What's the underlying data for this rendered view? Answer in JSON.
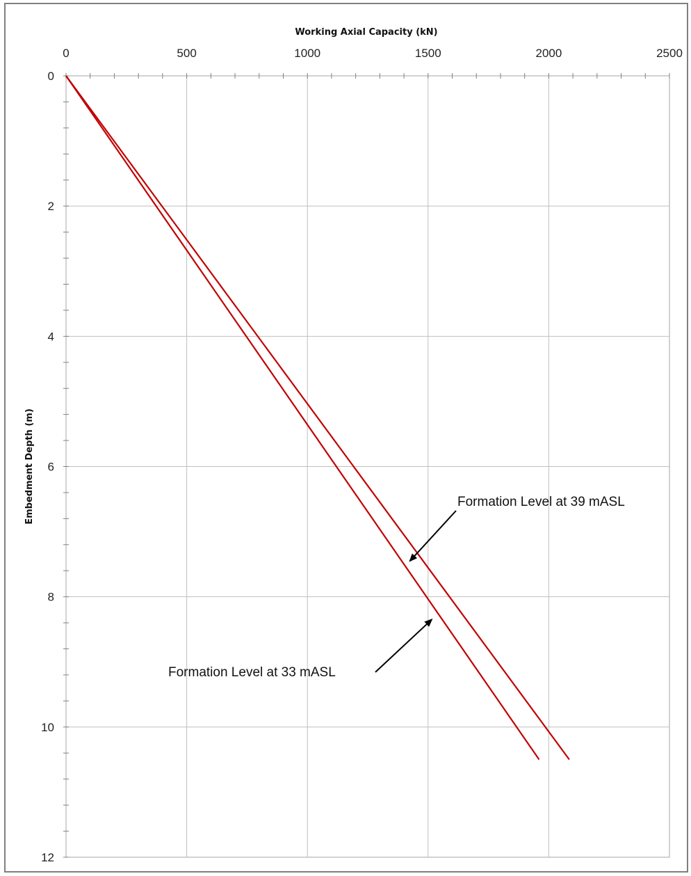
{
  "chart_data": {
    "type": "line",
    "title": "",
    "xlabel": "Working Axial Capacity (kN)",
    "ylabel": "Embedment Depth  (m)",
    "xlim": [
      0,
      2500
    ],
    "ylim": [
      0,
      12
    ],
    "y_inverted": true,
    "x_axis_position": "top",
    "x_ticks": [
      0,
      500,
      1000,
      1500,
      2000,
      2500
    ],
    "y_ticks": [
      0,
      2,
      4,
      6,
      8,
      10,
      12
    ],
    "grid": true,
    "line_color": "#c00000",
    "series": [
      {
        "name": "Formation Level at 39 mASL",
        "x": [
          0,
          2085
        ],
        "y": [
          0,
          10.5
        ]
      },
      {
        "name": "Formation Level at 33 mASL",
        "x": [
          0,
          1960
        ],
        "y": [
          0,
          10.5
        ]
      }
    ],
    "annotations": [
      {
        "text": "Formation Level at 39 mASL",
        "series": 0,
        "point": [
          1425,
          7.45
        ]
      },
      {
        "text": "Formation Level at 33 mASL",
        "series": 1,
        "point": [
          1515,
          8.35
        ]
      }
    ]
  }
}
